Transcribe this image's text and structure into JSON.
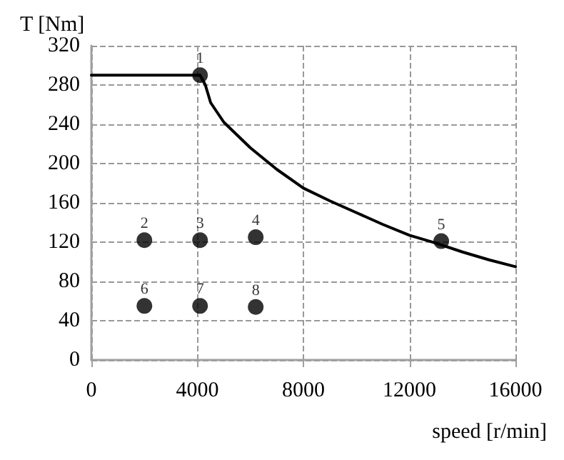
{
  "chart_data": {
    "type": "line",
    "xlabel": "speed [r/min]",
    "ylabel": "T [Nm]",
    "xlim": [
      0,
      16000
    ],
    "xticks": [
      0,
      4000,
      8000,
      12000,
      16000
    ],
    "ylim": [
      0,
      320
    ],
    "yticks": [
      0,
      40,
      80,
      120,
      160,
      200,
      240,
      280,
      320
    ],
    "grid": true,
    "line_style": "solid",
    "series": [
      {
        "color": "#000000",
        "marker": "none",
        "x": [
          0,
          4100,
          4300,
          4500,
          5000,
          6000,
          7000,
          8000,
          9000,
          10000,
          11000,
          12000,
          13000,
          14000,
          15000,
          16000
        ],
        "values": [
          290,
          290,
          280,
          262,
          242,
          216,
          194,
          175,
          162,
          150,
          138,
          127,
          119,
          110,
          102,
          95
        ]
      },
      {
        "type": "scatter",
        "color": "#000000",
        "marker": "circle",
        "x": [
          4100,
          2000,
          4100,
          6200,
          13200,
          2000,
          4100,
          6200
        ],
        "values": [
          290,
          122,
          122,
          125,
          121,
          55,
          55,
          54
        ]
      }
    ],
    "annotations": [
      {
        "text": "1",
        "x": 4100,
        "y": 290
      },
      {
        "text": "2",
        "x": 2000,
        "y": 122
      },
      {
        "text": "3",
        "x": 4100,
        "y": 122
      },
      {
        "text": "4",
        "x": 6200,
        "y": 125
      },
      {
        "text": "5",
        "x": 13200,
        "y": 121
      },
      {
        "text": "6",
        "x": 2000,
        "y": 55
      },
      {
        "text": "7",
        "x": 4100,
        "y": 55
      },
      {
        "text": "8",
        "x": 6200,
        "y": 54
      }
    ]
  }
}
